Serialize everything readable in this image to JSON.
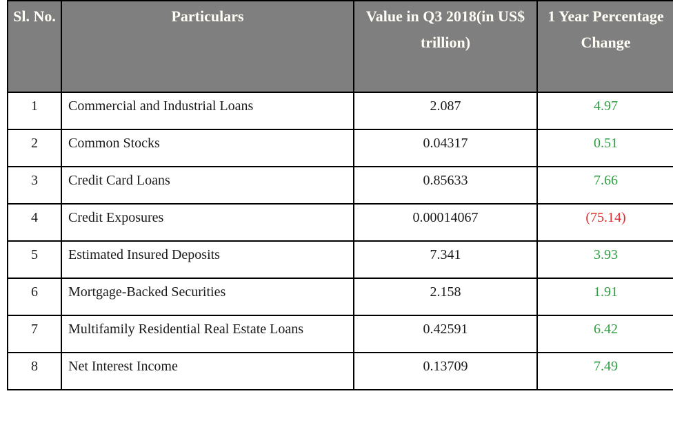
{
  "colors": {
    "header_bg": "#7f7f7f",
    "header_text": "#fffdf5",
    "positive": "#2f9e41",
    "negative": "#e02b2b",
    "border": "#000000"
  },
  "chart_data": {
    "type": "table",
    "title": "",
    "columns": [
      "Sl. No.",
      "Particulars",
      "Value in Q3 2018(in US$ trillion)",
      "1 Year Percentage Change"
    ],
    "rows": [
      {
        "sl": "1",
        "particulars": "Commercial and Industrial Loans",
        "value": "2.087",
        "change": "4.97",
        "negative": false
      },
      {
        "sl": "2",
        "particulars": "Common Stocks",
        "value": "0.04317",
        "change": "0.51",
        "negative": false
      },
      {
        "sl": "3",
        "particulars": "Credit Card Loans",
        "value": "0.85633",
        "change": "7.66",
        "negative": false
      },
      {
        "sl": "4",
        "particulars": "Credit Exposures",
        "value": "0.00014067",
        "change": "(75.14)",
        "negative": true
      },
      {
        "sl": "5",
        "particulars": "Estimated Insured Deposits",
        "value": "7.341",
        "change": "3.93",
        "negative": false
      },
      {
        "sl": "6",
        "particulars": "Mortgage-Backed Securities",
        "value": "2.158",
        "change": "1.91",
        "negative": false
      },
      {
        "sl": "7",
        "particulars": "Multifamily Residential Real Estate Loans",
        "value": "0.42591",
        "change": "6.42",
        "negative": false
      },
      {
        "sl": "8",
        "particulars": "Net Interest Income",
        "value": "0.13709",
        "change": "7.49",
        "negative": false
      }
    ],
    "notes": "Negative change values are shown in parentheses in red; positive changes in green."
  }
}
